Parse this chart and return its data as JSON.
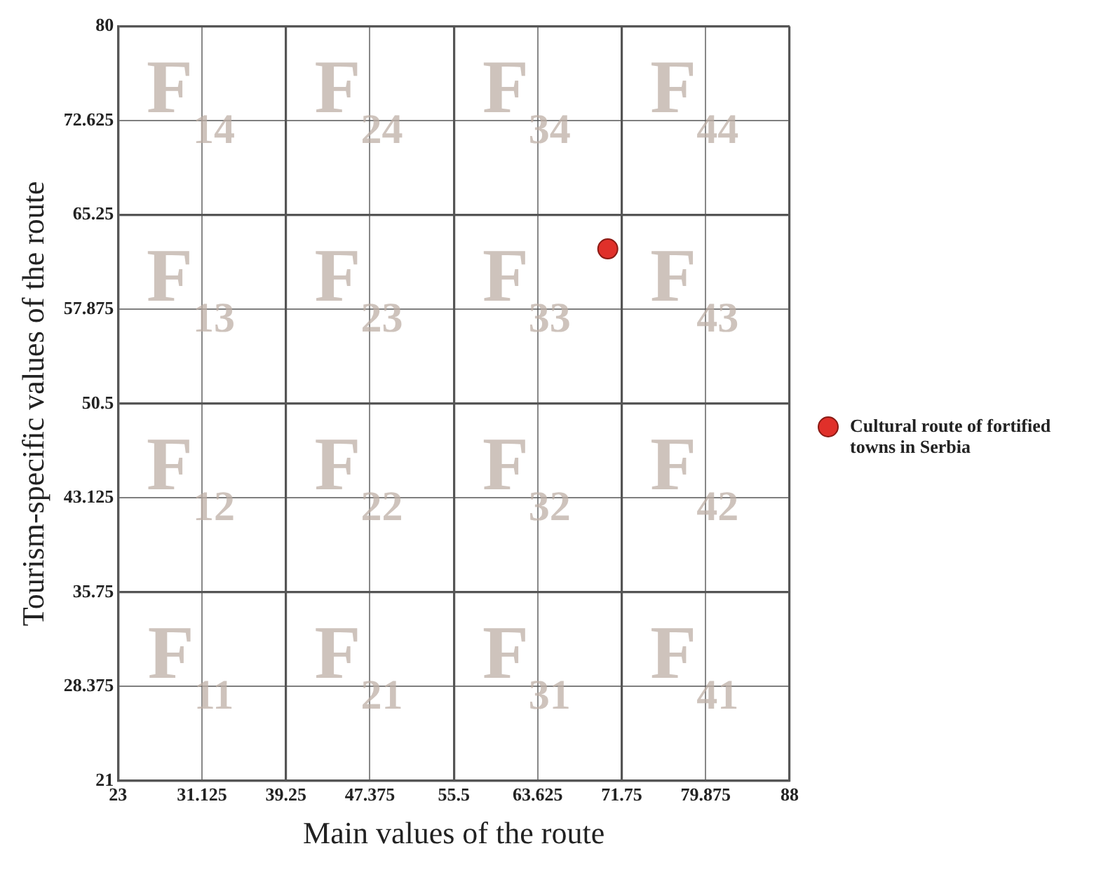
{
  "chart_data": {
    "type": "scatter",
    "xlabel": "Main values of the route",
    "ylabel": "Tourism-specific values of the route",
    "x": [
      70.4
    ],
    "series": [
      {
        "name": "Cultural route of fortified towns in Serbia",
        "color": "#e0302a",
        "values": [
          62.6
        ]
      }
    ],
    "xlim": [
      23,
      88
    ],
    "xticks": [
      23,
      31.125,
      39.25,
      47.375,
      55.5,
      63.625,
      71.75,
      79.875,
      88
    ],
    "ylim": [
      21,
      80
    ],
    "yticks": [
      21,
      28.375,
      35.75,
      43.125,
      50.5,
      57.875,
      65.25,
      72.625,
      80
    ],
    "grid": true,
    "legend": "right",
    "marker": "circle",
    "annotations": [
      "F$_{14}$",
      "F$_{24}$",
      "F$_{34}$",
      "F$_{44}$",
      "F$_{13}$",
      "F$_{23}$",
      "F$_{33}$",
      "F$_{43}$",
      "F$_{12}$",
      "F$_{22}$",
      "F$_{32}$",
      "F$_{42}$",
      "F$_{11}$",
      "F$_{21}$",
      "F$_{31}$",
      "F$_{41}$"
    ]
  }
}
